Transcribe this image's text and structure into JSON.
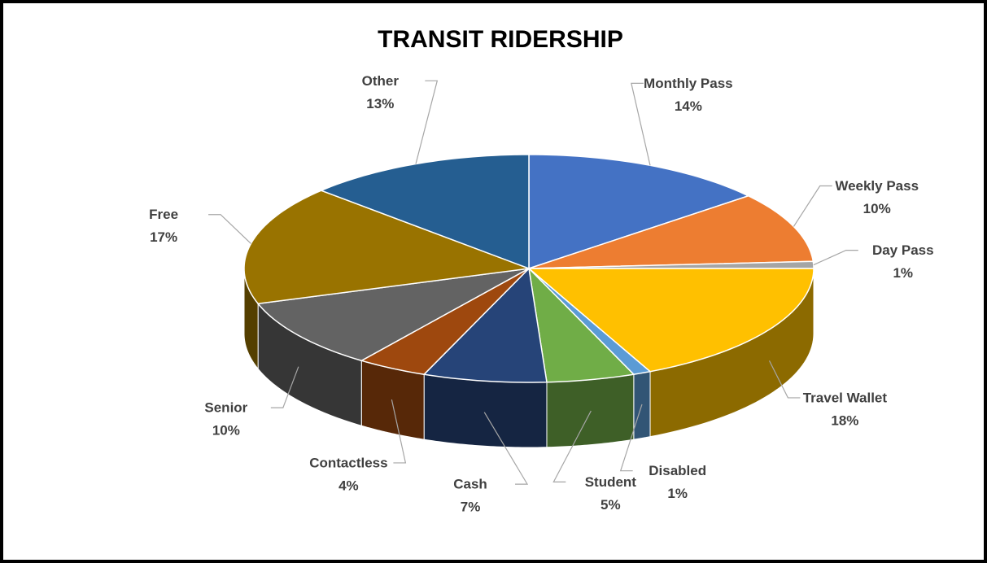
{
  "chart_data": {
    "type": "pie",
    "title": "TRANSIT RIDERSHIP",
    "categories": [
      "Monthly Pass",
      "Weekly Pass",
      "Day Pass",
      "Travel Wallet",
      "Disabled",
      "Student",
      "Cash",
      "Contactless",
      "Senior",
      "Free",
      "Other"
    ],
    "values": [
      14,
      10,
      1,
      18,
      1,
      5,
      7,
      4,
      10,
      17,
      13
    ],
    "value_labels": [
      "14%",
      "10%",
      "1%",
      "18%",
      "1%",
      "5%",
      "7%",
      "4%",
      "10%",
      "17%",
      "13%"
    ],
    "colors": [
      "#4472c4",
      "#ed7d31",
      "#a5a5a5",
      "#ffc000",
      "#5b9bd5",
      "#70ad47",
      "#264478",
      "#9e480e",
      "#636363",
      "#997300",
      "#255e91"
    ]
  }
}
